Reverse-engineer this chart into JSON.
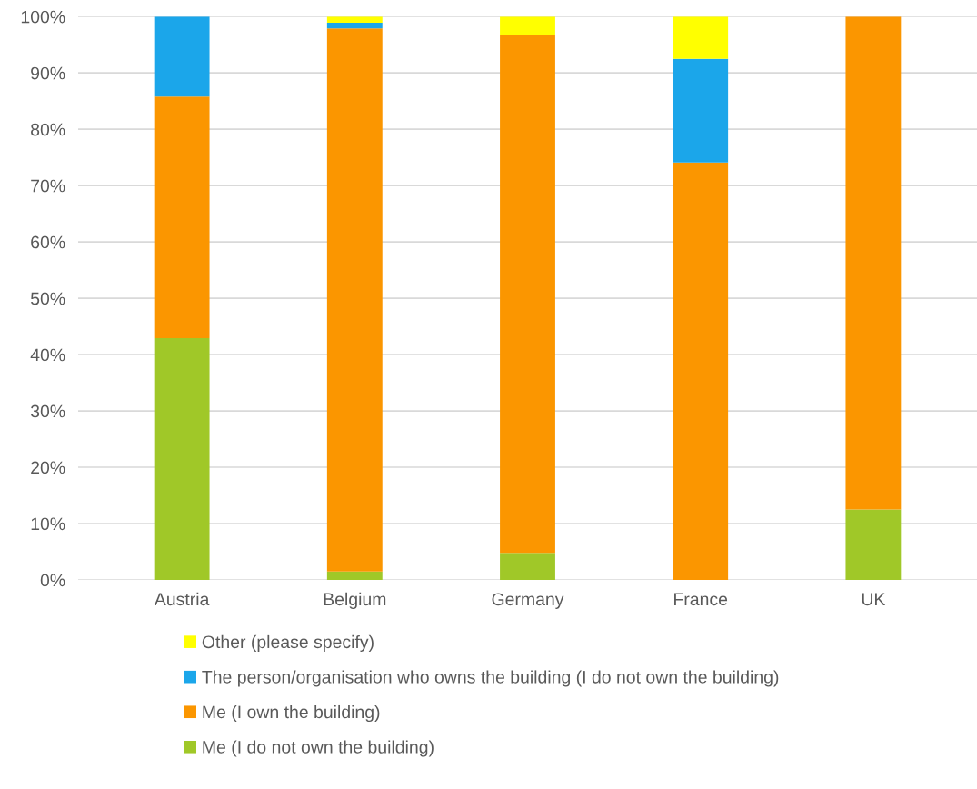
{
  "chart_data": {
    "type": "bar",
    "stacked": true,
    "categories": [
      "Austria",
      "Belgium",
      "Germany",
      "France",
      "UK"
    ],
    "series": [
      {
        "name": "Me (I do not own the building)",
        "color": "#a0c828",
        "values": [
          42.9,
          1.5,
          4.8,
          0,
          12.5
        ]
      },
      {
        "name": "Me (I own the building)",
        "color": "#fb9600",
        "values": [
          42.9,
          96.4,
          91.9,
          74.1,
          87.5
        ]
      },
      {
        "name": "The person/organisation who owns the building (I do not own the building)",
        "color": "#1ba6ea",
        "values": [
          14.2,
          1.0,
          0,
          18.4,
          0
        ]
      },
      {
        "name": "Other (please specify)",
        "color": "#ffff00",
        "values": [
          0,
          1.1,
          3.3,
          7.5,
          0
        ]
      }
    ],
    "ylim": [
      0,
      100
    ],
    "yticks": [
      {
        "value": 0,
        "label": "0%"
      },
      {
        "value": 10,
        "label": "10%"
      },
      {
        "value": 20,
        "label": "20%"
      },
      {
        "value": 30,
        "label": "30%"
      },
      {
        "value": 40,
        "label": "40%"
      },
      {
        "value": 50,
        "label": "50%"
      },
      {
        "value": 60,
        "label": "60%"
      },
      {
        "value": 70,
        "label": "70%"
      },
      {
        "value": 80,
        "label": "80%"
      },
      {
        "value": 90,
        "label": "90%"
      },
      {
        "value": 100,
        "label": "100%"
      }
    ],
    "grid": "y",
    "legend": "bottom"
  }
}
